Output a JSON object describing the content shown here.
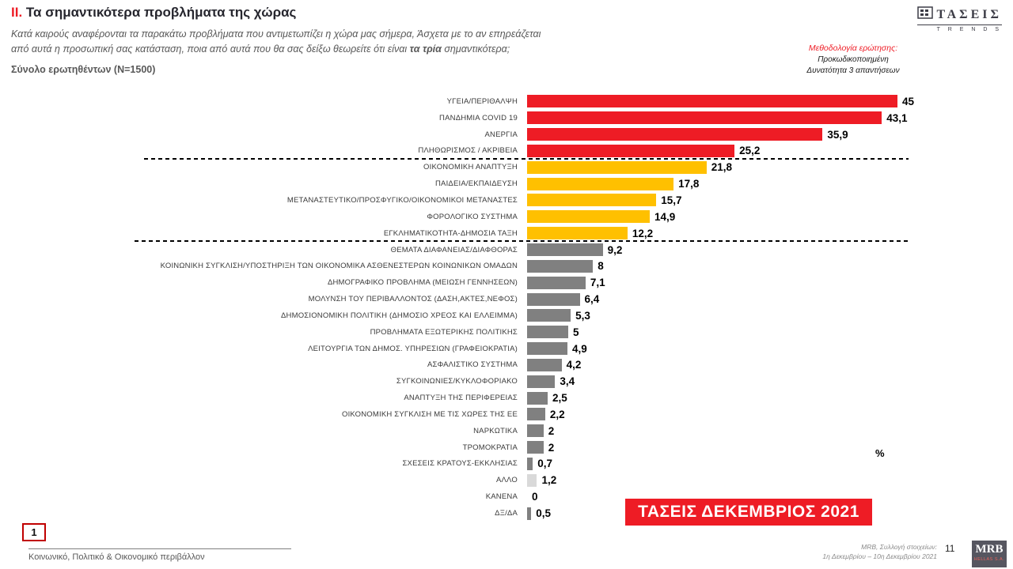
{
  "page": {
    "title_prefix": "II.",
    "title_text": " Τα σημαντικότερα προβλήματα της χώρας",
    "subtitle_line1": "Κατά καιρούς αναφέρονται τα παρακάτω προβλήματα που αντιμετωπίζει η χώρα μας σήμερα, Άσχετα με το αν επηρεάζεται",
    "subtitle_line2_pre": "από αυτά η προσωπική σας κατάσταση, ποια από αυτά που θα σας δείξω θεωρείτε ότι είναι ",
    "subtitle_line2_bold": "τα τρία",
    "subtitle_line2_post": " σημαντικότερα;",
    "sample_note": "Σύνολο ερωτηθέντων (N=1500)"
  },
  "brand": {
    "logo_text": "ΤΑΣΕΙΣ",
    "logo_sub": "T R E N D S"
  },
  "methodology": {
    "heading": "Μεθοδολογία ερώτησης:",
    "line1": "Προκωδικοποιημένη",
    "line2": "Δυνατότητα 3 απαντήσεων"
  },
  "chart_data": {
    "type": "bar",
    "orientation": "horizontal",
    "title": "Τα σημαντικότερα προβλήματα της χώρας",
    "unit": "%",
    "xlim": [
      0,
      47
    ],
    "legend_position": "none",
    "grid": false,
    "categories": [
      "ΥΓΕΙΑ/ΠΕΡΙΘΑΛΨΗ",
      "ΠΑΝΔΗΜΙΑ COVID 19",
      "ΑΝΕΡΓΙΑ",
      "ΠΛΗΘΩΡΙΣΜΟΣ / ΑΚΡΙΒΕΙΑ",
      "ΟΙΚΟΝΟΜΙΚΗ ΑΝΑΠΤΥΞΗ",
      "ΠΑΙΔΕΙΑ/ΕΚΠΑΙΔΕΥΣΗ",
      "ΜΕΤΑΝΑΣΤΕΥΤΙΚΟ/ΠΡΟΣΦΥΓΙΚΟ/ΟΙΚΟΝΟΜΙΚΟΙ ΜΕΤΑΝΑΣΤΕΣ",
      "ΦΟΡΟΛΟΓΙΚΟ ΣΥΣΤΗΜΑ",
      "ΕΓΚΛΗΜΑΤΙΚΟΤΗΤΑ-ΔΗΜΟΣΙΑ ΤΑΞΗ",
      "ΘΕΜΑΤΑ ΔΙΑΦΑΝΕΙΑΣ/ΔΙΑΦΘΟΡΑΣ",
      "ΚΟΙΝΩΝΙΚΗ ΣΥΓΚΛΙΣΗ/ΥΠΟΣΤΗΡΙΞΗ ΤΩΝ ΟΙΚΟΝΟΜΙΚΑ ΑΣΘΕΝΕΣΤΕΡΩΝ ΚΟΙΝΩΝΙΚΩΝ ΟΜΑΔΩΝ",
      "ΔΗΜΟΓΡΑΦΙΚΟ ΠΡΟΒΛΗΜΑ (ΜΕΙΩΣΗ ΓΕΝΝΗΣΕΩΝ)",
      "ΜΟΛΥΝΣΗ ΤΟΥ ΠΕΡΙΒΑΛΛΟΝΤΟΣ (ΔΑΣΗ,ΑΚΤΕΣ,ΝΕΦΟΣ)",
      "ΔΗΜΟΣΙΟΝΟΜΙΚΗ ΠΟΛΙΤΙΚΗ (ΔΗΜΟΣΙΟ ΧΡΕΟΣ ΚΑΙ ΕΛΛΕΙΜΜΑ)",
      "ΠΡΟΒΛΗΜΑΤΑ ΕΞΩΤΕΡΙΚΗΣ ΠΟΛΙΤΙΚΗΣ",
      "ΛΕΙΤΟΥΡΓΙΑ ΤΩΝ ΔΗΜΟΣ. ΥΠΗΡΕΣΙΩΝ (ΓΡΑΦΕΙΟΚΡΑΤΙΑ)",
      "ΑΣΦΑΛΙΣΤΙΚΟ ΣΥΣΤΗΜΑ",
      "ΣΥΓΚΟΙΝΩΝΙΕΣ/ΚΥΚΛΟΦΟΡΙΑΚΟ",
      "ΑΝΑΠΤΥΞΗ ΤΗΣ ΠΕΡΙΦΕΡΕΙΑΣ",
      "ΟΙΚΟΝΟΜΙΚΗ ΣΥΓΚΛΙΣΗ ΜΕ ΤΙΣ ΧΩΡΕΣ ΤΗΣ ΕΕ",
      "ΝΑΡΚΩΤΙΚΑ",
      "ΤΡΟΜΟΚΡΑΤΙΑ",
      "ΣΧΕΣΕΙΣ ΚΡΑΤΟΥΣ-ΕΚΚΛΗΣΙΑΣ",
      "ΑΛΛΟ",
      "ΚΑΝΕΝΑ",
      "ΔΞ/ΔΑ"
    ],
    "values": [
      45,
      43.1,
      35.9,
      25.2,
      21.8,
      17.8,
      15.7,
      14.9,
      12.2,
      9.2,
      8,
      7.1,
      6.4,
      5.3,
      5,
      4.9,
      4.2,
      3.4,
      2.5,
      2.2,
      2,
      2,
      0.7,
      1.2,
      0,
      0.5
    ],
    "value_labels": [
      "45",
      "43,1",
      "35,9",
      "25,2",
      "21,8",
      "17,8",
      "15,7",
      "14,9",
      "12,2",
      "9,2",
      "8",
      "7,1",
      "6,4",
      "5,3",
      "5",
      "4,9",
      "4,2",
      "3,4",
      "2,5",
      "2,2",
      "2",
      "2",
      "0,7",
      "1,2",
      "0",
      "0,5"
    ],
    "bar_colors": [
      "#ee1c25",
      "#ee1c25",
      "#ee1c25",
      "#ee1c25",
      "#ffc000",
      "#ffc000",
      "#ffc000",
      "#ffc000",
      "#ffc000",
      "#808080",
      "#808080",
      "#808080",
      "#808080",
      "#808080",
      "#808080",
      "#808080",
      "#808080",
      "#808080",
      "#808080",
      "#808080",
      "#808080",
      "#808080",
      "#808080",
      "#d9d9d9",
      "#808080",
      "#808080"
    ],
    "group_separators_after_index": [
      3,
      8
    ],
    "palette": {
      "top_group": "#ee1c25",
      "middle_group": "#ffc000",
      "bottom_group": "#808080",
      "other": "#d9d9d9"
    }
  },
  "stamp": {
    "label": "ΤΑΣΕΙΣ ΔΕΚΕΜΒΡΙΟΣ 2021",
    "color": "#ee1c25"
  },
  "footer": {
    "page_box": "1",
    "section_label": "Κοινωνικό, Πολιτικό & Οικονομικό περιβάλλον",
    "collection_line1": "MRB, Συλλογή στοιχείων:",
    "collection_line2": "1η Δεκεμβρίου – 10η Δεκεμβρίου 2021",
    "page_number": "11",
    "mrb_logo_main": "MRB",
    "mrb_logo_sub": "HELLAS S.A."
  }
}
